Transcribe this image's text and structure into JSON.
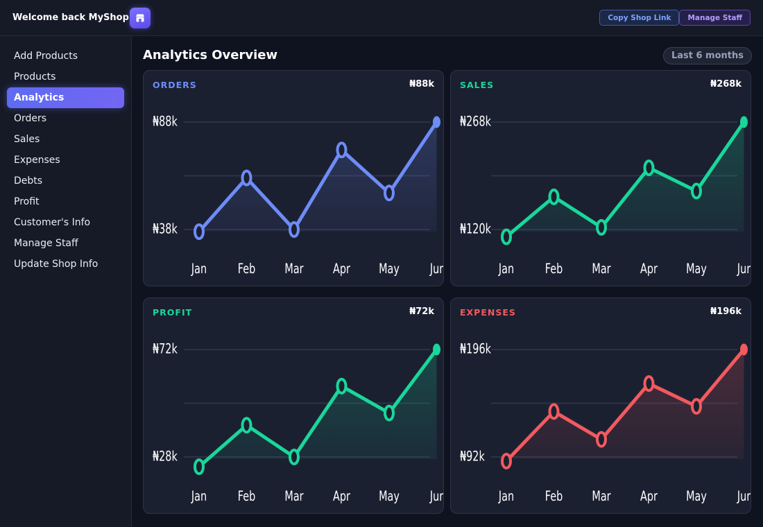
{
  "header": {
    "brand": "Welcome back MyShop",
    "shop_icon": "shop-icon",
    "copy_link_label": "Copy Shop Link",
    "manage_staff_label": "Manage Staff"
  },
  "sidebar": {
    "items": [
      {
        "label": "Add Products",
        "active": false
      },
      {
        "label": "Products",
        "active": false
      },
      {
        "label": "Analytics",
        "active": true
      },
      {
        "label": "Orders",
        "active": false
      },
      {
        "label": "Sales",
        "active": false
      },
      {
        "label": "Expenses",
        "active": false
      },
      {
        "label": "Debts",
        "active": false
      },
      {
        "label": "Profit",
        "active": false
      },
      {
        "label": "Customer's Info",
        "active": false
      },
      {
        "label": "Manage Staff",
        "active": false
      },
      {
        "label": "Update Shop Info",
        "active": false
      }
    ]
  },
  "main": {
    "title": "Analytics Overview",
    "range": "Last 6 months"
  },
  "colors": {
    "orders": "#6e8cf7",
    "sales": "#19d79a",
    "profit": "#19d79a",
    "expenses": "#f25a5f"
  },
  "chart_data": [
    {
      "key": "orders",
      "type": "area",
      "title": "ORDERS",
      "value": "₦88k",
      "x": [
        "Jan",
        "Feb",
        "Mar",
        "Apr",
        "May",
        "Jun"
      ],
      "tick_labels": [
        "Jan",
        "Feb",
        "Mar",
        "Apr",
        "May",
        "Jur"
      ],
      "y_tick_labels": [
        "₦88k",
        "₦38k"
      ],
      "ylim": [
        38,
        88
      ],
      "values": [
        37,
        62,
        38,
        75,
        55,
        88
      ],
      "grid": true
    },
    {
      "key": "sales",
      "type": "area",
      "title": "SALES",
      "value": "₦268k",
      "x": [
        "Jan",
        "Feb",
        "Mar",
        "Apr",
        "May",
        "Jun"
      ],
      "tick_labels": [
        "Jan",
        "Feb",
        "Mar",
        "Apr",
        "May",
        "Jur"
      ],
      "y_tick_labels": [
        "₦268k",
        "₦120k"
      ],
      "ylim": [
        120,
        268
      ],
      "values": [
        110,
        165,
        123,
        205,
        173,
        268
      ],
      "grid": true
    },
    {
      "key": "profit",
      "type": "area",
      "title": "PROFIT",
      "value": "₦72k",
      "x": [
        "Jan",
        "Feb",
        "Mar",
        "Apr",
        "May",
        "Jun"
      ],
      "tick_labels": [
        "Jan",
        "Feb",
        "Mar",
        "Apr",
        "May",
        "Jur"
      ],
      "y_tick_labels": [
        "₦72k",
        "₦28k"
      ],
      "ylim": [
        28,
        72
      ],
      "values": [
        24,
        41,
        28,
        57,
        46,
        72
      ],
      "grid": true
    },
    {
      "key": "expenses",
      "type": "area",
      "title": "EXPENSES",
      "value": "₦196k",
      "x": [
        "Jan",
        "Feb",
        "Mar",
        "Apr",
        "May",
        "Jun"
      ],
      "tick_labels": [
        "Jan",
        "Feb",
        "Mar",
        "Apr",
        "May",
        "Jur"
      ],
      "y_tick_labels": [
        "₦196k",
        "₦92k"
      ],
      "ylim": [
        92,
        196
      ],
      "values": [
        88,
        136,
        109,
        163,
        141,
        196
      ],
      "grid": true
    }
  ]
}
